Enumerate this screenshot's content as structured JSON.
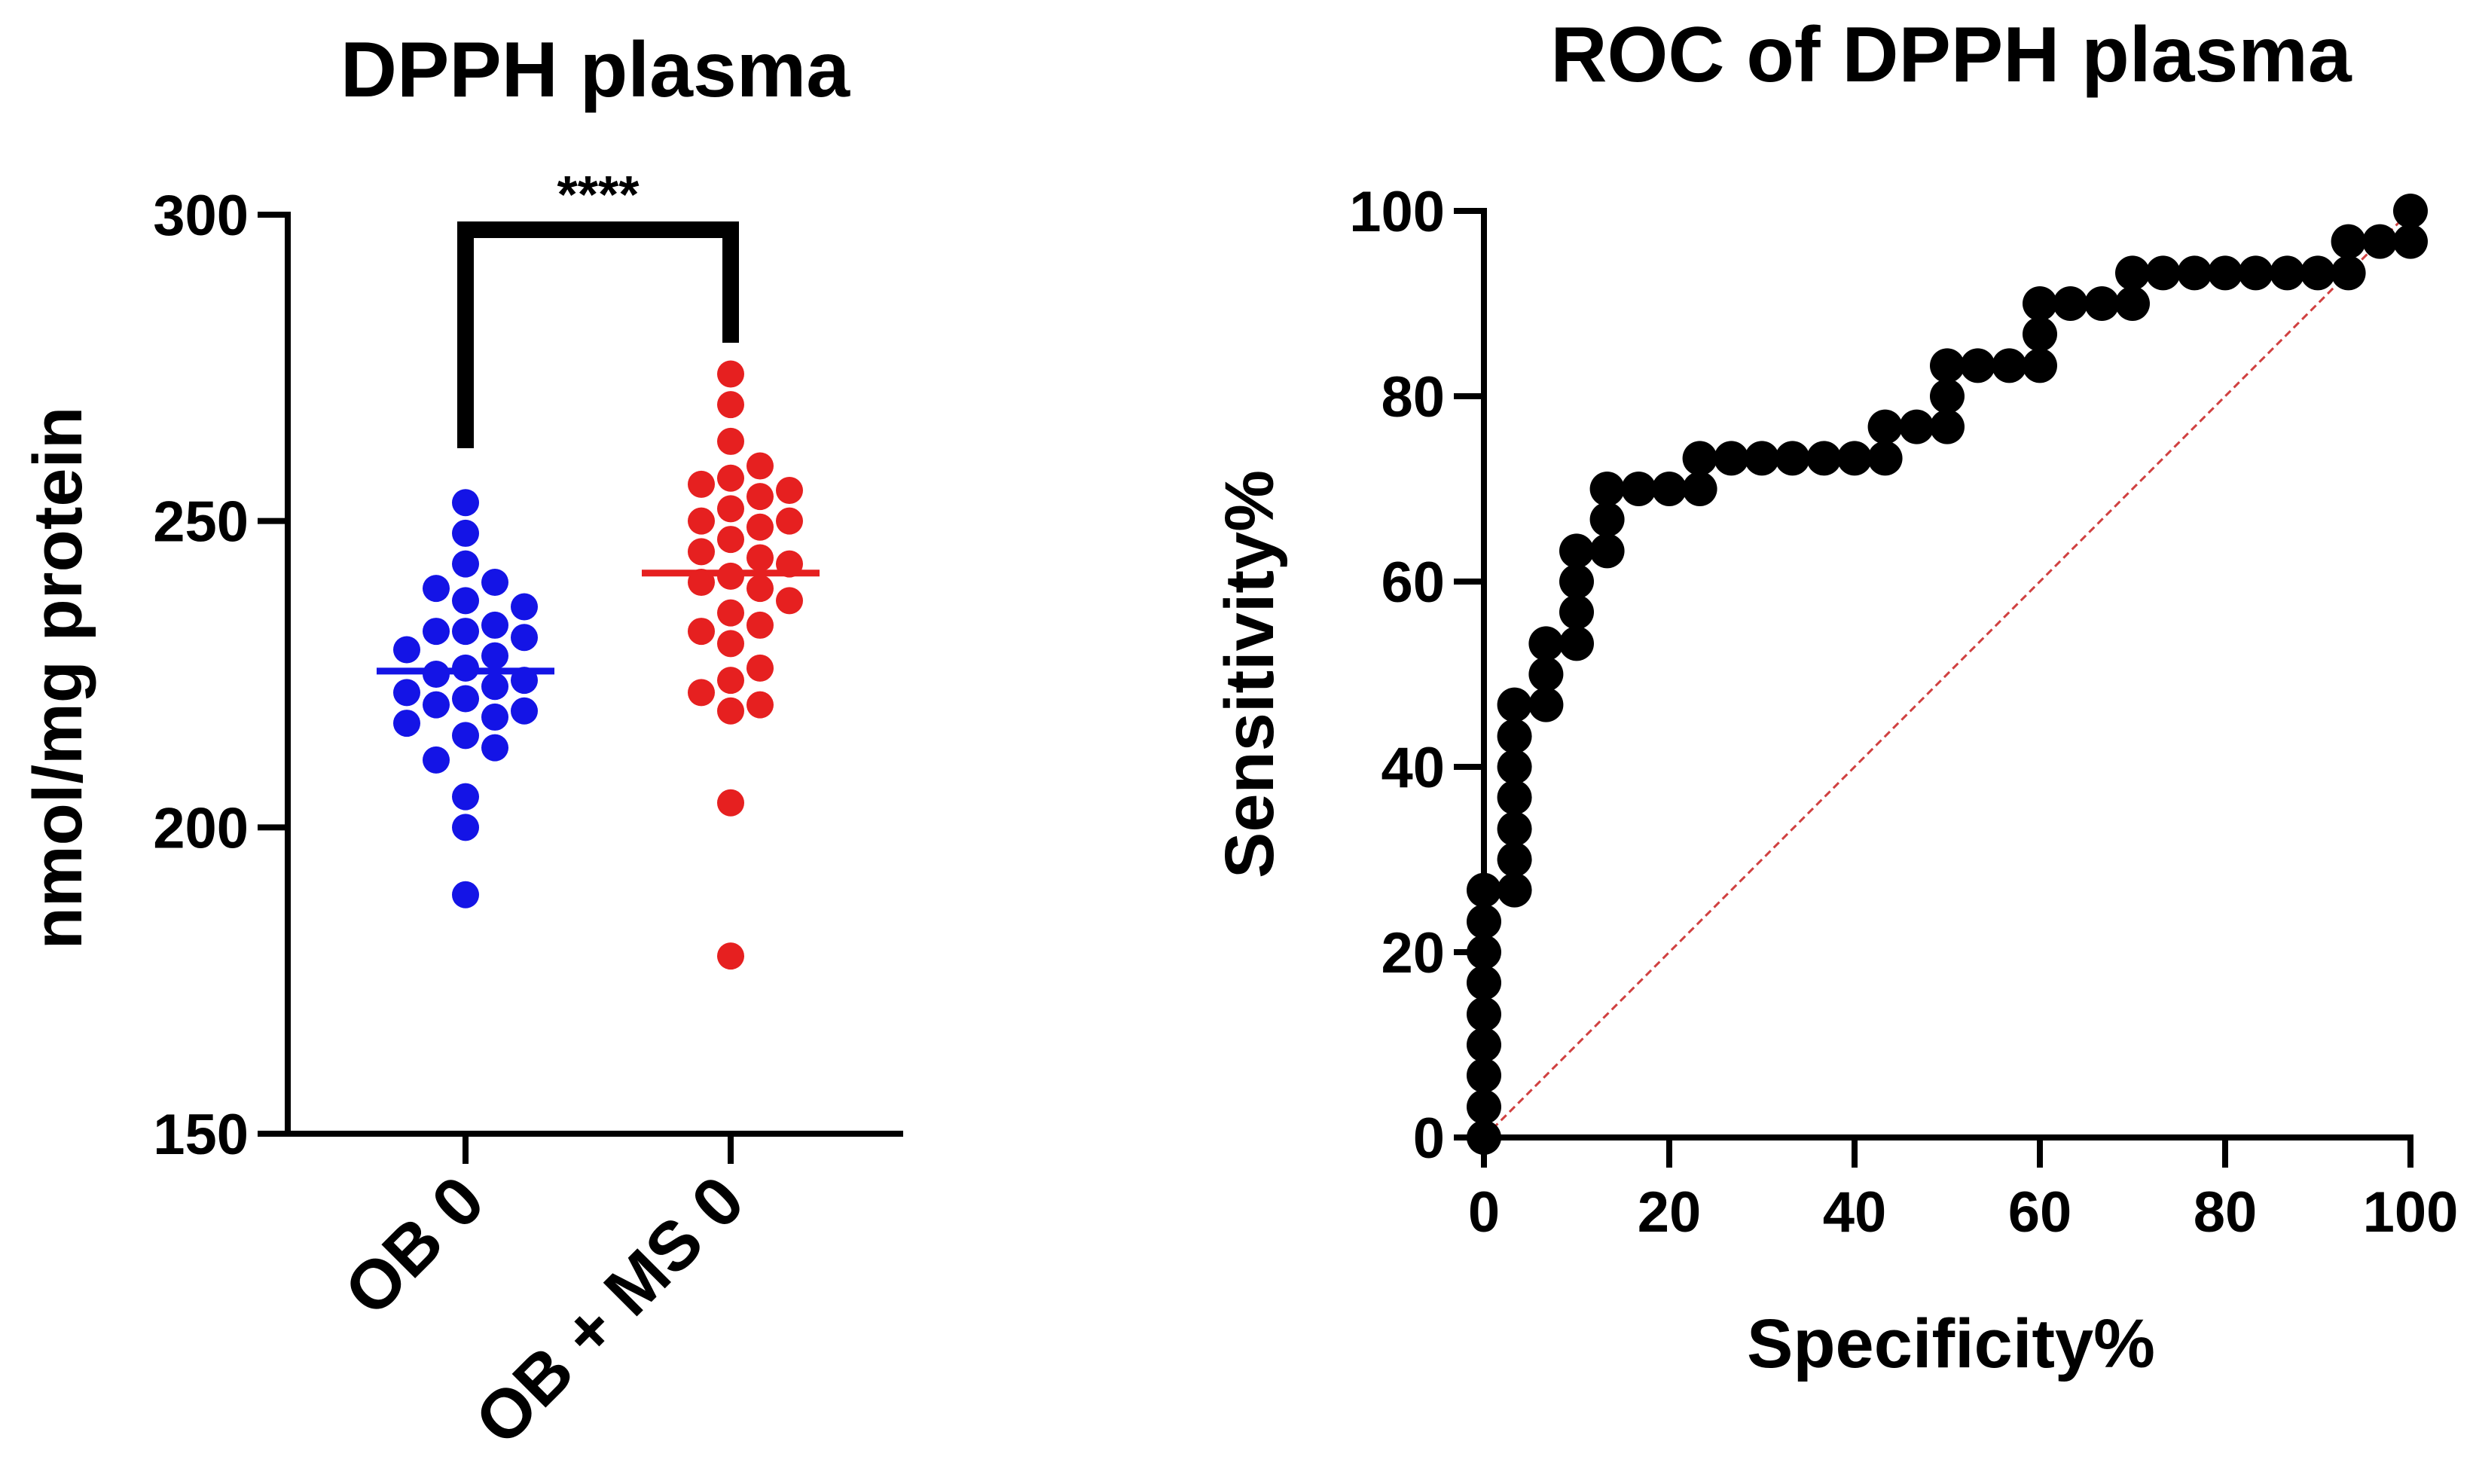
{
  "chart_data": [
    {
      "type": "scatter",
      "title": "DPPH plasma",
      "xlabel": "",
      "ylabel": "nmol/mg protein",
      "ylim": [
        150,
        300
      ],
      "yticks": [
        150,
        200,
        250,
        300
      ],
      "categories": [
        "OB 0",
        "OB + MS 0"
      ],
      "significance": "****",
      "series": [
        {
          "name": "OB 0",
          "color": "#1414e6",
          "mean": 225.5,
          "values": [
            253,
            248,
            243,
            239,
            240,
            237,
            236,
            233,
            232,
            232,
            231,
            229,
            228,
            226,
            225,
            224,
            223,
            222,
            221,
            220,
            219,
            218,
            217,
            215,
            213,
            211,
            205,
            200,
            189
          ]
        },
        {
          "name": "OB + MS 0",
          "color": "#e62020",
          "mean": 241.5,
          "values": [
            274,
            269,
            263,
            259,
            257,
            256,
            255,
            254,
            252,
            250,
            250,
            249,
            247,
            245,
            244,
            243,
            241,
            240,
            239,
            237,
            235,
            233,
            232,
            230,
            226,
            224,
            222,
            220,
            219,
            204,
            179
          ]
        }
      ]
    },
    {
      "type": "line",
      "title": "ROC of DPPH plasma",
      "xlabel": "Specificity%",
      "ylabel": "Sensitivity%",
      "xlim": [
        0,
        100
      ],
      "ylim": [
        0,
        100
      ],
      "xticks": [
        0,
        20,
        40,
        60,
        80,
        100
      ],
      "yticks": [
        0,
        20,
        40,
        60,
        80,
        100
      ],
      "series": [
        {
          "name": "ROC curve",
          "color": "#000000",
          "x": [
            0,
            0,
            0,
            0,
            0,
            0,
            0,
            0,
            0,
            3.3,
            3.3,
            3.3,
            3.3,
            3.3,
            3.3,
            3.3,
            6.7,
            6.7,
            6.7,
            10,
            10,
            10,
            10,
            13.3,
            13.3,
            13.3,
            16.7,
            20,
            23.3,
            23.3,
            26.7,
            30,
            33.3,
            36.7,
            40,
            43.3,
            43.3,
            46.7,
            50,
            50,
            50,
            53.3,
            56.7,
            60,
            60,
            60,
            63.3,
            66.7,
            70,
            70,
            73.3,
            76.7,
            80,
            83.3,
            86.7,
            90,
            93.3,
            93.3,
            96.7,
            100,
            100
          ],
          "y": [
            0,
            3.3,
            6.7,
            10,
            13.3,
            16.7,
            20,
            23.3,
            26.7,
            26.7,
            30,
            33.3,
            36.7,
            40,
            43.3,
            46.7,
            46.7,
            50,
            53.3,
            53.3,
            56.7,
            60,
            63.3,
            63.3,
            66.7,
            70,
            70,
            70,
            70,
            73.3,
            73.3,
            73.3,
            73.3,
            73.3,
            73.3,
            73.3,
            76.7,
            76.7,
            76.7,
            80,
            83.3,
            83.3,
            83.3,
            83.3,
            86.7,
            90,
            90,
            90,
            90,
            93.3,
            93.3,
            93.3,
            93.3,
            93.3,
            93.3,
            93.3,
            93.3,
            96.7,
            96.7,
            96.7,
            100
          ]
        },
        {
          "name": "Reference line",
          "color": "#d04040",
          "x": [
            0,
            100
          ],
          "y": [
            0,
            100
          ]
        }
      ]
    }
  ]
}
